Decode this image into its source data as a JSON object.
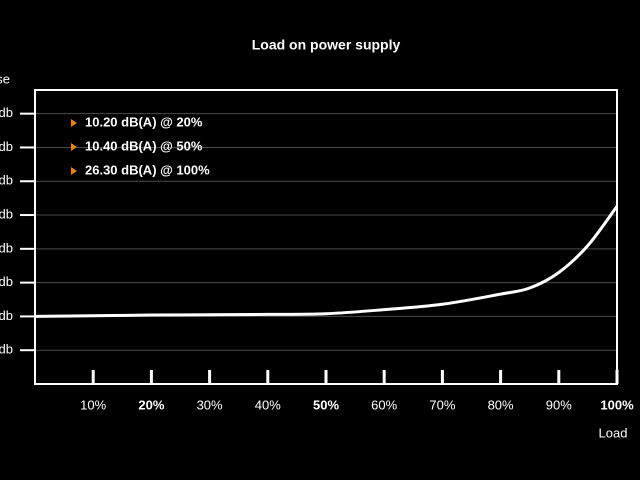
{
  "chart_data": {
    "type": "line",
    "title": "Load on power supply",
    "y_label": "se",
    "x_label": "Load",
    "annotations": [
      "10.20 dB(A) @ 20%",
      "10.40 dB(A) @ 50%",
      "26.30 dB(A) @ 100%"
    ],
    "annotation_marker_color": "#e8821e",
    "x": [
      0,
      10,
      20,
      30,
      40,
      50,
      60,
      70,
      80,
      85,
      90,
      95,
      100
    ],
    "values": [
      10.0,
      10.1,
      10.2,
      10.25,
      10.3,
      10.4,
      11.0,
      11.8,
      13.3,
      14.2,
      16.5,
      20.5,
      26.3
    ],
    "color": "#ffffff",
    "xlim": [
      0,
      100
    ],
    "xticks": [
      {
        "value": 10,
        "label": "10%"
      },
      {
        "value": 20,
        "label": "20%",
        "bold": true
      },
      {
        "value": 30,
        "label": "30%"
      },
      {
        "value": 40,
        "label": "40%"
      },
      {
        "value": 50,
        "label": "50%",
        "bold": true
      },
      {
        "value": 60,
        "label": "60%"
      },
      {
        "value": 70,
        "label": "70%"
      },
      {
        "value": 80,
        "label": "80%"
      },
      {
        "value": 90,
        "label": "90%"
      },
      {
        "value": 100,
        "label": "100%",
        "bold": true
      }
    ],
    "ylim": [
      0,
      43.5
    ],
    "yticks": [
      {
        "value": 5,
        "label": "db"
      },
      {
        "value": 10,
        "label": "db"
      },
      {
        "value": 15,
        "label": "db"
      },
      {
        "value": 20,
        "label": "db"
      },
      {
        "value": 25,
        "label": "db"
      },
      {
        "value": 30,
        "label": "db"
      },
      {
        "value": 35,
        "label": "db"
      },
      {
        "value": 40,
        "label": "db"
      }
    ],
    "grid": true
  }
}
